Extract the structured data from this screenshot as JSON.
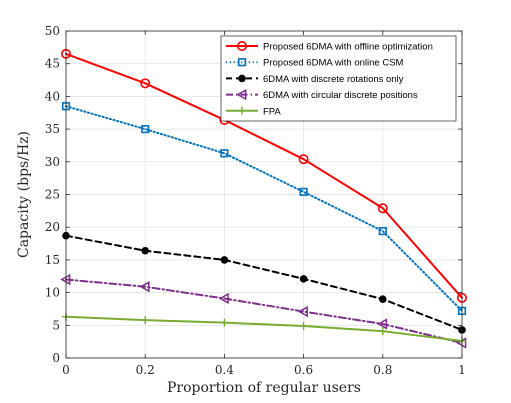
{
  "chart_data": {
    "type": "line",
    "xlabel": "Proportion of regular users",
    "ylabel": "Capacity (bps/Hz)",
    "xlim": [
      0,
      1
    ],
    "ylim": [
      0,
      50
    ],
    "xticks": [
      0,
      0.2,
      0.4,
      0.6,
      0.8,
      1
    ],
    "xtick_labels": [
      "0",
      "0.2",
      "0.4",
      "0.6",
      "0.8",
      "1"
    ],
    "yticks": [
      0,
      5,
      10,
      15,
      20,
      25,
      30,
      35,
      40,
      45,
      50
    ],
    "ytick_labels": [
      "0",
      "5",
      "10",
      "15",
      "20",
      "25",
      "30",
      "35",
      "40",
      "45",
      "50"
    ],
    "grid": true,
    "legend_position": "top-right",
    "x": [
      0,
      0.2,
      0.4,
      0.6,
      0.8,
      1
    ],
    "series": [
      {
        "name": "Proposed 6DMA with offline optimization",
        "values": [
          46.5,
          42.0,
          36.4,
          30.4,
          22.9,
          9.2
        ],
        "color": "#ff0000",
        "dash": "solid",
        "marker": "circle"
      },
      {
        "name": "Proposed 6DMA with online CSM",
        "values": [
          38.5,
          35.0,
          31.3,
          25.4,
          19.4,
          7.2
        ],
        "color": "#0072bd",
        "dash": "dotted",
        "marker": "square"
      },
      {
        "name": "6DMA with discrete rotations only",
        "values": [
          18.7,
          16.4,
          15.0,
          12.1,
          9.0,
          4.3
        ],
        "color": "#000000",
        "dash": "dashed",
        "marker": "filled-circle"
      },
      {
        "name": "6DMA with circular discrete positions",
        "values": [
          12.0,
          10.9,
          9.1,
          7.1,
          5.2,
          2.3
        ],
        "color": "#7e2f8e",
        "dash": "dashdot",
        "marker": "left-triangle"
      },
      {
        "name": "FPA",
        "values": [
          6.3,
          5.8,
          5.4,
          4.9,
          4.1,
          2.6
        ],
        "color": "#77ac30",
        "dash": "solid",
        "marker": "plus"
      }
    ]
  }
}
